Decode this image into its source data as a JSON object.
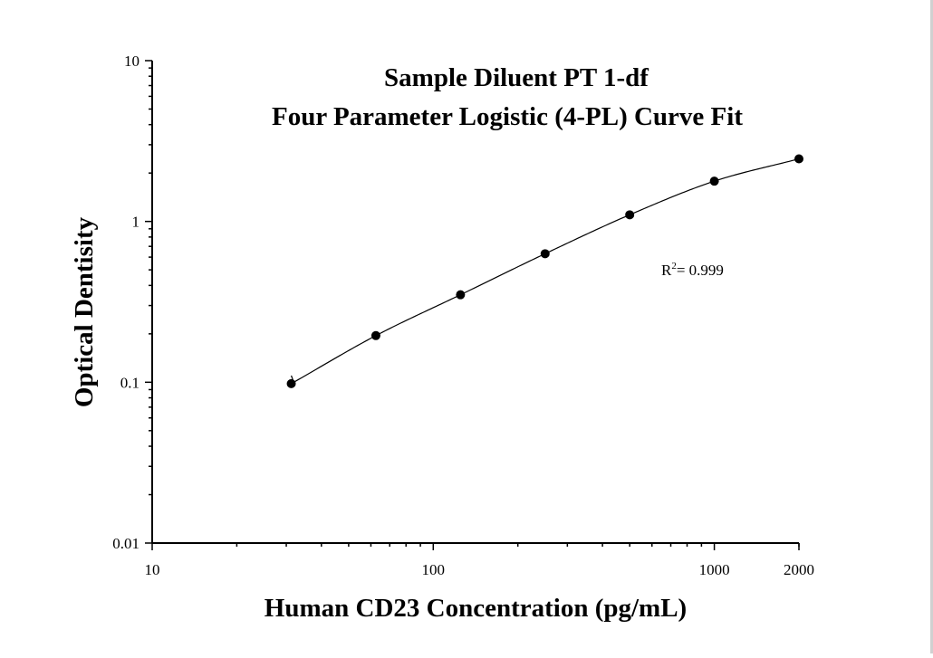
{
  "chart_data": {
    "type": "scatter",
    "title": "Sample Diluent PT 1-df",
    "subtitle": "Four Parameter Logistic (4-PL) Curve Fit",
    "xlabel": "Human CD23 Concentration (pg/mL)",
    "ylabel": "Optical Dentisity",
    "x_scale": "log",
    "y_scale": "log",
    "xlim": [
      10,
      2000
    ],
    "ylim": [
      0.01,
      10
    ],
    "x_ticks": [
      "10",
      "100",
      "1000",
      "2000"
    ],
    "y_ticks": [
      "0.01",
      "0.1",
      "1",
      "10"
    ],
    "grid": false,
    "series": [
      {
        "x": [
          31.25,
          62.5,
          125,
          250,
          500,
          1000,
          2000
        ],
        "y": [
          0.098,
          0.195,
          0.35,
          0.63,
          1.1,
          1.78,
          2.45
        ]
      }
    ],
    "fit_curve": {
      "x_start": 31.25,
      "x_end": 2000
    },
    "annotation": {
      "text": "R",
      "superscript": "2",
      "suffix": "= 0.999"
    }
  }
}
